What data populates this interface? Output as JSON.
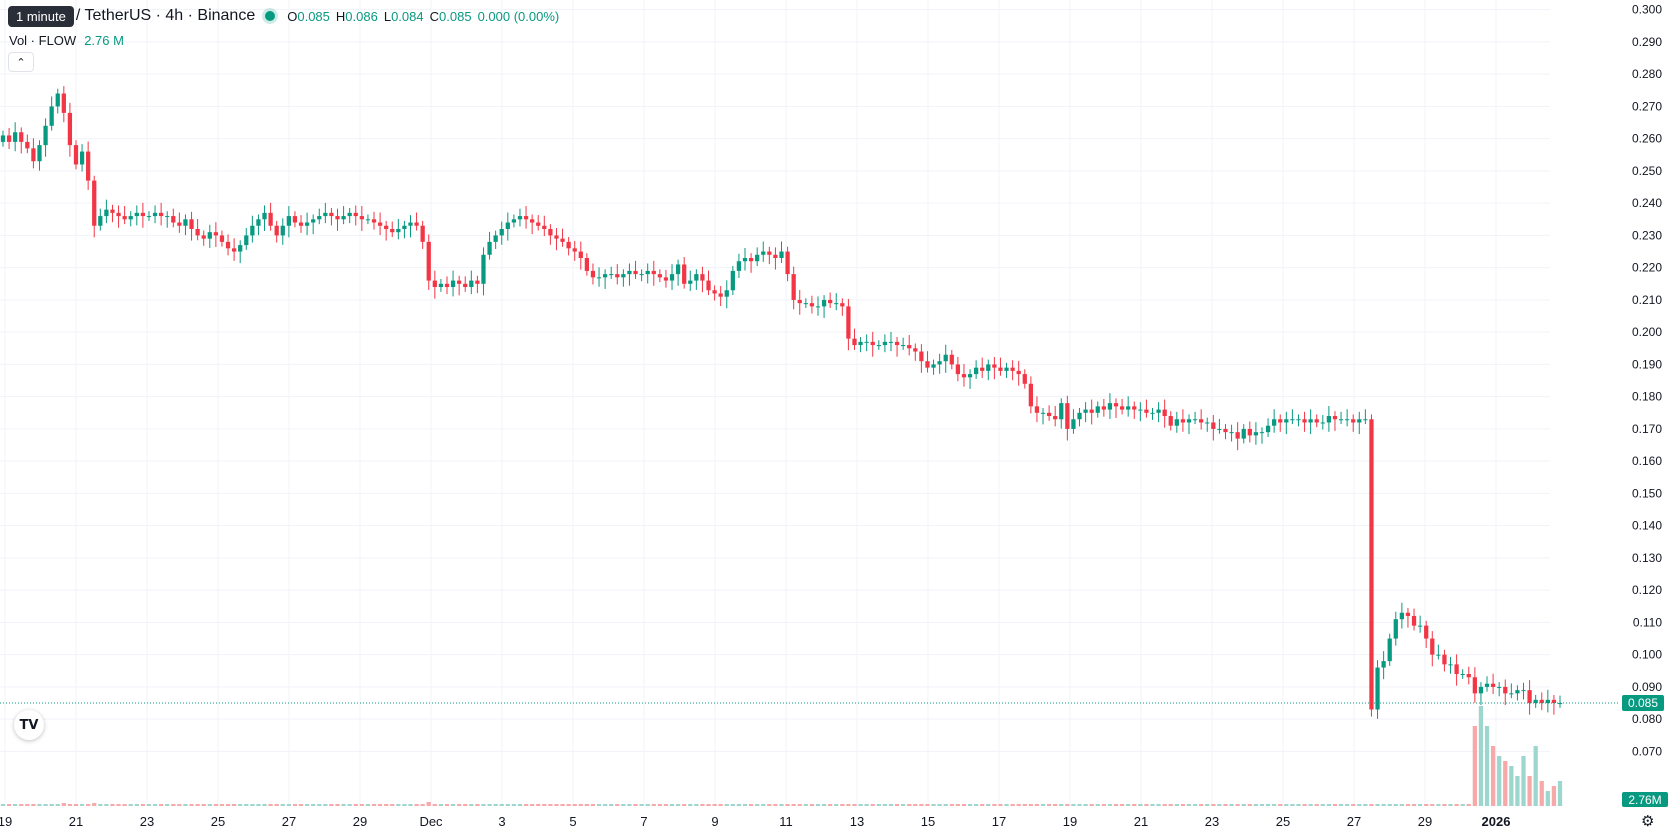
{
  "legend": {
    "tooltip": "1 minute",
    "symbol": "/ TetherUS · 4h · Binance",
    "open_label": "O",
    "open": "0.085",
    "high_label": "H",
    "high": "0.086",
    "low_label": "L",
    "low": "0.084",
    "close_label": "C",
    "close": "0.085",
    "change": "0.000 (0.00%)"
  },
  "volume": {
    "label": "Vol · FLOW",
    "value": "2.76 M",
    "axis_badge": "2.76M"
  },
  "price_badge": "0.085",
  "collapse_icon": "chevron-up-icon",
  "logo_icon": "tradingview-logo",
  "colors": {
    "up": "#089981",
    "down": "#f23645",
    "up_vol": "#9dd6cd",
    "down_vol": "#f7a9a9",
    "grid": "#f0f3fa"
  },
  "chart_data": {
    "type": "candlestick",
    "ylim": [
      0.063,
      0.303
    ],
    "y_ticks": [
      "0.300",
      "0.290",
      "0.280",
      "0.270",
      "0.260",
      "0.250",
      "0.240",
      "0.230",
      "0.220",
      "0.210",
      "0.200",
      "0.190",
      "0.180",
      "0.170",
      "0.160",
      "0.150",
      "0.140",
      "0.130",
      "0.120",
      "0.110",
      "0.100",
      "0.090",
      "0.080",
      "0.070"
    ],
    "x_ticks": [
      "19",
      "21",
      "23",
      "25",
      "27",
      "29",
      "Dec",
      "3",
      "5",
      "7",
      "9",
      "11",
      "13",
      "15",
      "17",
      "19",
      "21",
      "23",
      "25",
      "27",
      "29",
      "2026"
    ],
    "last_price": 0.085,
    "closes": [
      0.261,
      0.259,
      0.262,
      0.259,
      0.257,
      0.253,
      0.258,
      0.264,
      0.27,
      0.274,
      0.268,
      0.258,
      0.252,
      0.256,
      0.247,
      0.233,
      0.236,
      0.238,
      0.237,
      0.236,
      0.235,
      0.236,
      0.237,
      0.236,
      0.236,
      0.237,
      0.236,
      0.236,
      0.234,
      0.233,
      0.235,
      0.232,
      0.23,
      0.229,
      0.231,
      0.23,
      0.228,
      0.226,
      0.225,
      0.227,
      0.23,
      0.233,
      0.235,
      0.237,
      0.233,
      0.23,
      0.233,
      0.236,
      0.234,
      0.233,
      0.234,
      0.235,
      0.236,
      0.237,
      0.236,
      0.235,
      0.236,
      0.237,
      0.236,
      0.235,
      0.235,
      0.234,
      0.233,
      0.232,
      0.231,
      0.232,
      0.233,
      0.234,
      0.233,
      0.228,
      0.216,
      0.214,
      0.215,
      0.214,
      0.216,
      0.215,
      0.214,
      0.216,
      0.215,
      0.224,
      0.228,
      0.23,
      0.232,
      0.234,
      0.235,
      0.236,
      0.235,
      0.234,
      0.233,
      0.232,
      0.23,
      0.229,
      0.228,
      0.226,
      0.225,
      0.223,
      0.219,
      0.217,
      0.217,
      0.218,
      0.218,
      0.217,
      0.218,
      0.219,
      0.218,
      0.218,
      0.219,
      0.218,
      0.217,
      0.216,
      0.218,
      0.221,
      0.215,
      0.216,
      0.218,
      0.216,
      0.213,
      0.212,
      0.211,
      0.213,
      0.219,
      0.222,
      0.223,
      0.222,
      0.224,
      0.225,
      0.224,
      0.223,
      0.225,
      0.218,
      0.21,
      0.209,
      0.209,
      0.208,
      0.208,
      0.21,
      0.209,
      0.209,
      0.208,
      0.198,
      0.196,
      0.197,
      0.197,
      0.196,
      0.196,
      0.197,
      0.197,
      0.196,
      0.196,
      0.195,
      0.194,
      0.191,
      0.189,
      0.19,
      0.191,
      0.193,
      0.19,
      0.187,
      0.186,
      0.187,
      0.189,
      0.188,
      0.19,
      0.189,
      0.188,
      0.189,
      0.188,
      0.187,
      0.184,
      0.177,
      0.175,
      0.175,
      0.174,
      0.173,
      0.178,
      0.17,
      0.173,
      0.175,
      0.176,
      0.175,
      0.177,
      0.176,
      0.178,
      0.177,
      0.176,
      0.177,
      0.176,
      0.176,
      0.175,
      0.175,
      0.176,
      0.174,
      0.171,
      0.173,
      0.172,
      0.173,
      0.173,
      0.172,
      0.172,
      0.17,
      0.17,
      0.169,
      0.169,
      0.167,
      0.17,
      0.168,
      0.169,
      0.169,
      0.171,
      0.173,
      0.172,
      0.173,
      0.173,
      0.173,
      0.172,
      0.173,
      0.172,
      0.172,
      0.174,
      0.173,
      0.173,
      0.173,
      0.172,
      0.173,
      0.173,
      0.083,
      0.096,
      0.098,
      0.105,
      0.111,
      0.113,
      0.112,
      0.109,
      0.109,
      0.105,
      0.1,
      0.1,
      0.097,
      0.097,
      0.094,
      0.094,
      0.093,
      0.088,
      0.09,
      0.091,
      0.09,
      0.09,
      0.088,
      0.088,
      0.089,
      0.089,
      0.085,
      0.086,
      0.085,
      0.086,
      0.085,
      0.085
    ],
    "volumes": [
      0.02,
      0.02,
      0.02,
      0.02,
      0.02,
      0.02,
      0.02,
      0.02,
      0.02,
      0.02,
      0.03,
      0.02,
      0.02,
      0.02,
      0.02,
      0.03,
      0.02,
      0.02,
      0.02,
      0.02,
      0.02,
      0.02,
      0.02,
      0.02,
      0.02,
      0.02,
      0.02,
      0.02,
      0.02,
      0.02,
      0.02,
      0.02,
      0.02,
      0.02,
      0.02,
      0.02,
      0.02,
      0.02,
      0.02,
      0.02,
      0.02,
      0.02,
      0.02,
      0.02,
      0.02,
      0.02,
      0.02,
      0.02,
      0.02,
      0.02,
      0.02,
      0.02,
      0.02,
      0.02,
      0.02,
      0.02,
      0.02,
      0.02,
      0.02,
      0.02,
      0.02,
      0.02,
      0.02,
      0.02,
      0.02,
      0.02,
      0.02,
      0.02,
      0.02,
      0.02,
      0.04,
      0.02,
      0.02,
      0.02,
      0.02,
      0.02,
      0.02,
      0.02,
      0.02,
      0.02,
      0.02,
      0.02,
      0.02,
      0.02,
      0.02,
      0.02,
      0.02,
      0.02,
      0.02,
      0.02,
      0.02,
      0.02,
      0.02,
      0.02,
      0.02,
      0.02,
      0.02,
      0.02,
      0.02,
      0.02,
      0.02,
      0.02,
      0.02,
      0.02,
      0.02,
      0.02,
      0.02,
      0.02,
      0.02,
      0.02,
      0.02,
      0.02,
      0.02,
      0.02,
      0.02,
      0.02,
      0.02,
      0.02,
      0.02,
      0.02,
      0.02,
      0.02,
      0.02,
      0.02,
      0.02,
      0.02,
      0.02,
      0.02,
      0.02,
      0.02,
      0.02,
      0.02,
      0.02,
      0.02,
      0.02,
      0.02,
      0.02,
      0.02,
      0.02,
      0.02,
      0.02,
      0.02,
      0.02,
      0.02,
      0.02,
      0.02,
      0.02,
      0.02,
      0.02,
      0.02,
      0.02,
      0.02,
      0.02,
      0.02,
      0.02,
      0.02,
      0.02,
      0.02,
      0.02,
      0.02,
      0.02,
      0.02,
      0.02,
      0.02,
      0.02,
      0.02,
      0.02,
      0.02,
      0.02,
      0.02,
      0.02,
      0.02,
      0.02,
      0.02,
      0.02,
      0.02,
      0.02,
      0.02,
      0.02,
      0.02,
      0.02,
      0.02,
      0.02,
      0.02,
      0.02,
      0.02,
      0.02,
      0.02,
      0.02,
      0.02,
      0.02,
      0.02,
      0.02,
      0.02,
      0.02,
      0.02,
      0.02,
      0.02,
      0.02,
      0.02,
      0.02,
      0.02,
      0.02,
      0.02,
      0.02,
      0.02,
      0.02,
      0.02,
      0.02,
      0.02,
      0.02,
      0.02,
      0.02,
      0.02,
      0.02,
      0.02,
      0.02,
      0.02,
      0.02,
      0.02,
      0.02,
      0.02,
      0.02,
      0.02,
      0.02,
      0.02,
      0.02,
      0.02,
      0.02,
      0.02,
      0.02,
      0.02,
      0.02,
      0.02,
      0.02,
      0.02,
      0.02,
      0.02,
      0.02,
      0.02,
      0.02,
      0.02,
      0.8,
      1.0,
      0.8,
      0.6,
      0.5,
      0.45,
      0.4,
      0.3,
      0.5,
      0.3,
      0.6,
      0.25,
      0.15,
      0.2,
      0.25,
      0.2,
      0.25,
      0.15,
      0.3,
      0.2,
      0.1,
      0.05,
      0.1,
      0.08,
      0.1,
      0.15,
      0.1,
      0.08,
      0.06,
      0.04,
      0.03,
      0.02
    ]
  }
}
